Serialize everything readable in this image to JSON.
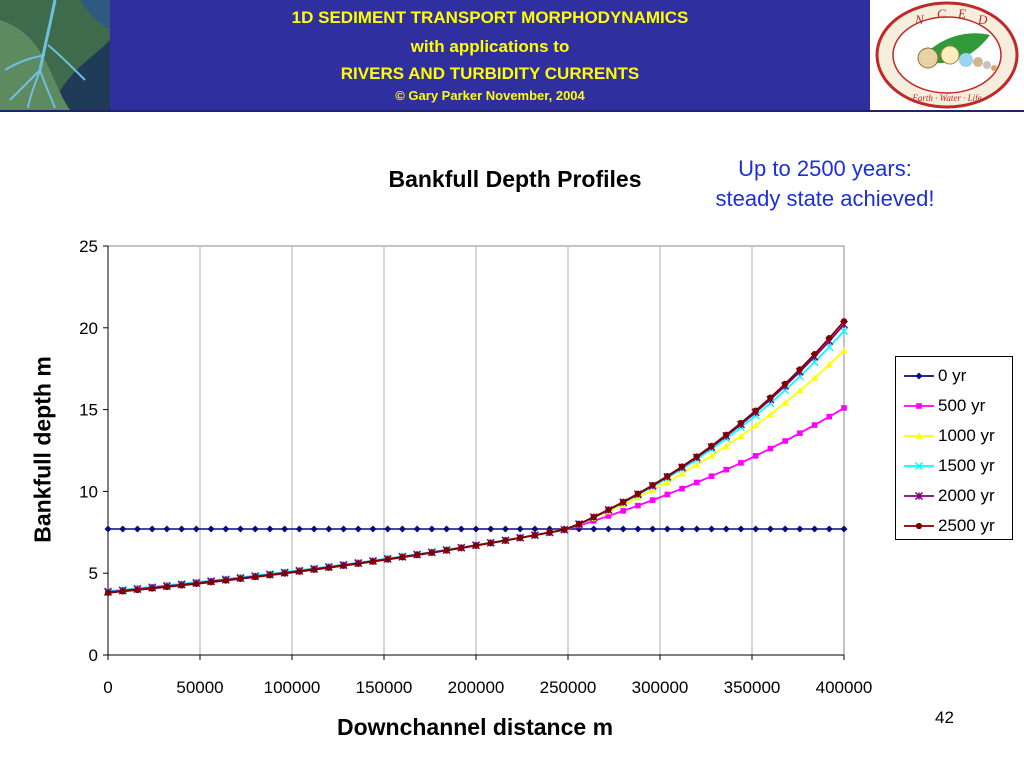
{
  "header": {
    "title_line1": "1D SEDIMENT TRANSPORT MORPHODYNAMICS",
    "title_line2": "with applications to",
    "title_line3": "RIVERS AND TURBIDITY CURRENTS",
    "copyright": "© Gary Parker November, 2004",
    "band_color": "#2f2f9f",
    "title_color": "#ffff00"
  },
  "logo": {
    "letters": [
      "N",
      "C",
      "E",
      "D"
    ],
    "ring_text": "Earth · Water · Life",
    "ring_color": "#c0282a"
  },
  "annotation": {
    "line1": "Up to 2500 years:",
    "line2": "steady state achieved!",
    "color": "#1d2fd6"
  },
  "chart_data": {
    "type": "line",
    "title": "Bankfull Depth Profiles",
    "xlabel": "Downchannel distance m",
    "ylabel": "Bankfull depth m",
    "xlim": [
      0,
      400000
    ],
    "ylim": [
      0,
      25
    ],
    "x_ticks": [
      "0",
      "50000",
      "100000",
      "150000",
      "200000",
      "250000",
      "300000",
      "350000",
      "400000"
    ],
    "y_ticks": [
      "0",
      "5",
      "10",
      "15",
      "20",
      "25"
    ],
    "grid": "vertical",
    "legend_position": "right",
    "n_points": 51,
    "series": [
      {
        "name": "0 yr",
        "color": "#0a0a80",
        "marker": "diamond",
        "y_start": 7.7,
        "y_mid": 7.7,
        "y_end": 7.7
      },
      {
        "name": "500 yr",
        "color": "#ff00ff",
        "marker": "square",
        "y_start": 3.9,
        "y_mid": 7.7,
        "y_end": 15.1
      },
      {
        "name": "1000 yr",
        "color": "#ffff00",
        "marker": "triangle",
        "y_start": 3.9,
        "y_mid": 7.7,
        "y_end": 18.6
      },
      {
        "name": "1500 yr",
        "color": "#00ffff",
        "marker": "x",
        "y_start": 3.9,
        "y_mid": 7.7,
        "y_end": 19.8
      },
      {
        "name": "2000 yr",
        "color": "#800080",
        "marker": "star",
        "y_start": 3.85,
        "y_mid": 7.7,
        "y_end": 20.2
      },
      {
        "name": "2500 yr",
        "color": "#800000",
        "marker": "circle",
        "y_start": 3.8,
        "y_mid": 7.7,
        "y_end": 20.4
      }
    ]
  },
  "page_number": "42"
}
